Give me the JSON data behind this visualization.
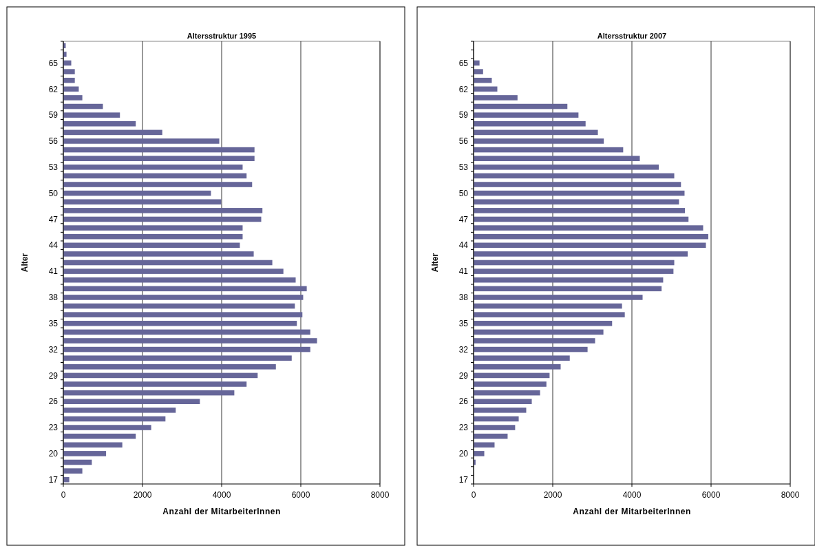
{
  "chart_data": [
    {
      "type": "bar",
      "orientation": "horizontal",
      "title": "Altersstruktur 1995",
      "xlabel": "Anzahl der MitarbeiterInnen",
      "ylabel": "Alter",
      "categories": [
        null,
        null,
        "65",
        null,
        null,
        "62",
        null,
        null,
        "59",
        null,
        null,
        "56",
        null,
        null,
        "53",
        null,
        null,
        "50",
        null,
        null,
        "47",
        null,
        null,
        "44",
        null,
        null,
        "41",
        null,
        null,
        "38",
        null,
        null,
        "35",
        null,
        null,
        "32",
        null,
        null,
        "29",
        null,
        null,
        "26",
        null,
        null,
        "23",
        null,
        null,
        "20",
        null,
        null,
        "17"
      ],
      "values": [
        60,
        80,
        200,
        290,
        290,
        390,
        480,
        1000,
        1430,
        1830,
        2500,
        3940,
        4830,
        4830,
        4530,
        4630,
        4770,
        3730,
        3990,
        5030,
        5000,
        4530,
        4530,
        4460,
        4810,
        5280,
        5560,
        5870,
        6150,
        6060,
        5850,
        6040,
        5900,
        6240,
        6410,
        6240,
        5770,
        5370,
        4910,
        4630,
        4320,
        3450,
        2840,
        2580,
        2220,
        1830,
        1490,
        1080,
        720,
        480,
        150
      ],
      "color": "#666699",
      "xlim": [
        0,
        8000
      ],
      "xticks": [
        0,
        2000,
        4000,
        6000,
        8000
      ],
      "grid": "x"
    },
    {
      "type": "bar",
      "orientation": "horizontal",
      "title": "Altersstruktur 2007",
      "xlabel": "Anzahl der MitarbeiterInnen",
      "ylabel": "Alter",
      "categories": [
        null,
        null,
        "65",
        null,
        null,
        "62",
        null,
        null,
        "59",
        null,
        null,
        "56",
        null,
        null,
        "53",
        null,
        null,
        "50",
        null,
        null,
        "47",
        null,
        null,
        "44",
        null,
        null,
        "41",
        null,
        null,
        "38",
        null,
        null,
        "35",
        null,
        null,
        "32",
        null,
        null,
        "29",
        null,
        null,
        "26",
        null,
        null,
        "23",
        null,
        null,
        "20",
        null,
        null,
        "17"
      ],
      "values": [
        0,
        0,
        150,
        240,
        460,
        600,
        1110,
        2370,
        2650,
        2830,
        3140,
        3290,
        3780,
        4200,
        4680,
        5070,
        5240,
        5330,
        5190,
        5340,
        5430,
        5800,
        5930,
        5870,
        5410,
        5070,
        5050,
        4790,
        4750,
        4270,
        3750,
        3820,
        3500,
        3280,
        3070,
        2880,
        2430,
        2200,
        1920,
        1840,
        1680,
        1470,
        1330,
        1140,
        1050,
        860,
        530,
        270,
        50,
        0,
        0
      ],
      "color": "#666699",
      "xlim": [
        0,
        8000
      ],
      "xticks": [
        0,
        2000,
        4000,
        6000,
        8000
      ],
      "grid": "x"
    }
  ]
}
